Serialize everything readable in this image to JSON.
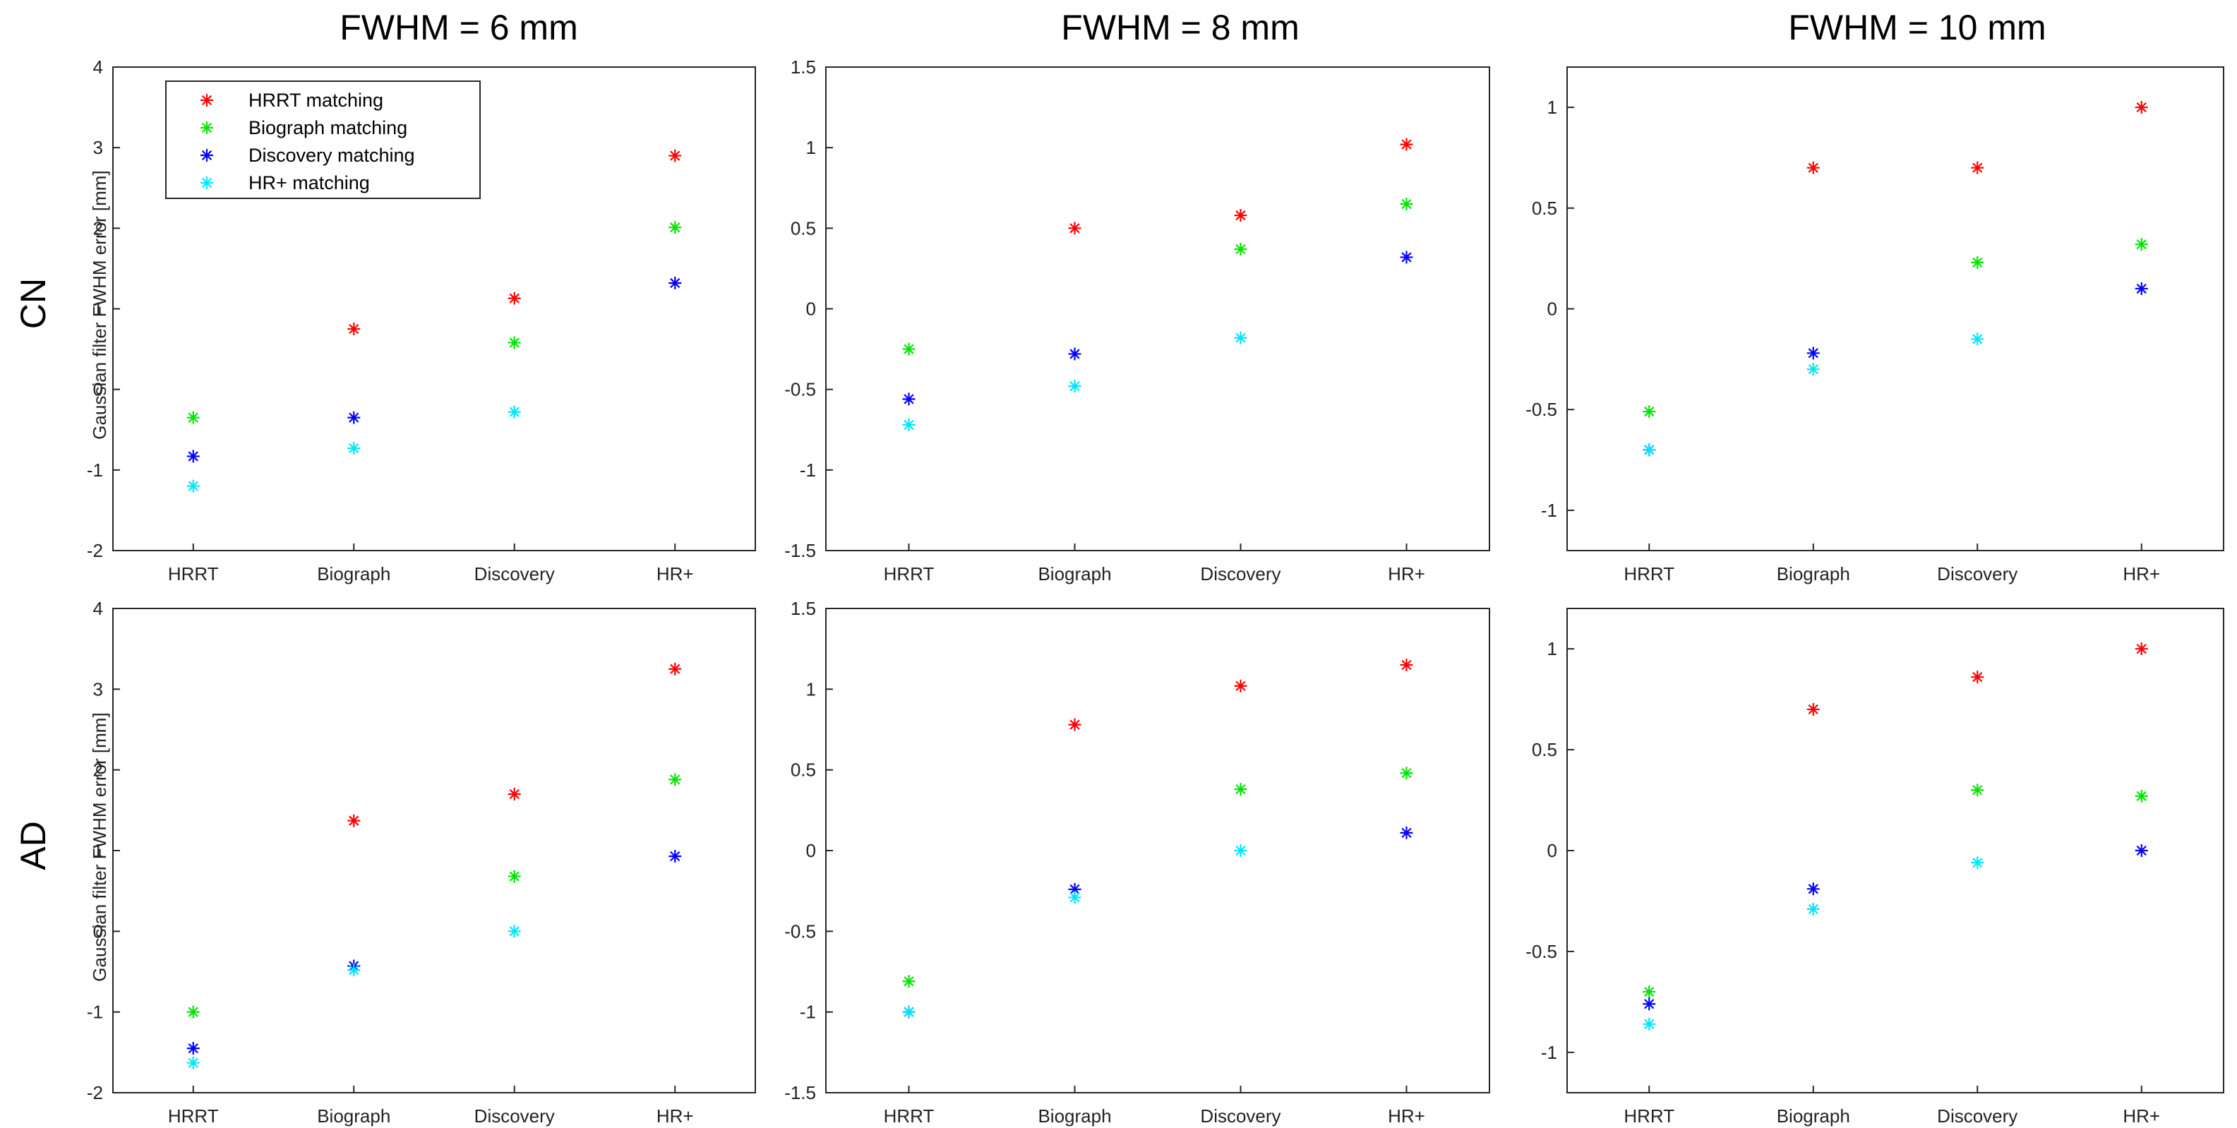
{
  "figure": {
    "column_titles": [
      "FWHM = 6 mm",
      "FWHM = 8 mm",
      "FWHM = 10 mm"
    ],
    "row_labels": [
      "CN",
      "AD"
    ],
    "ylabel": "Gaussian filter FWHM error [mm]"
  },
  "legend": {
    "placement": "top-left of first panel",
    "entries": [
      "HRRT matching",
      "Biograph matching",
      "Discovery matching",
      "HR+ matching"
    ]
  },
  "series_colors": {
    "HRRT matching": "#ff0000",
    "Biograph matching": "#00e600",
    "Discovery matching": "#0000ff",
    "HR+ matching": "#00e6ff"
  },
  "marker": "asterisk",
  "chart_data": [
    {
      "type": "scatter",
      "row": "CN",
      "column_title": "FWHM = 6 mm",
      "categories": [
        "HRRT",
        "Biograph",
        "Discovery",
        "HR+"
      ],
      "ylim": [
        -2,
        4
      ],
      "yticks": [
        -2,
        -1,
        0,
        1,
        2,
        3,
        4
      ],
      "ytick_labels": [
        "-2",
        "-1",
        "0",
        "1",
        "2",
        "3",
        "4"
      ],
      "ylabel": "Gaussian filter FWHM error [mm]",
      "grid": false,
      "series": [
        {
          "name": "HRRT matching",
          "values": [
            null,
            0.75,
            1.13,
            2.9
          ]
        },
        {
          "name": "Biograph matching",
          "values": [
            -0.35,
            null,
            0.58,
            2.01
          ]
        },
        {
          "name": "Discovery matching",
          "values": [
            -0.83,
            -0.35,
            null,
            1.32
          ]
        },
        {
          "name": "HR+ matching",
          "values": [
            -1.2,
            -0.73,
            -0.28,
            null
          ]
        }
      ]
    },
    {
      "type": "scatter",
      "row": "CN",
      "column_title": "FWHM = 8 mm",
      "categories": [
        "HRRT",
        "Biograph",
        "Discovery",
        "HR+"
      ],
      "ylim": [
        -1.5,
        1.5
      ],
      "yticks": [
        -1.5,
        -1,
        -0.5,
        0,
        0.5,
        1,
        1.5
      ],
      "ytick_labels": [
        "-1.5",
        "-1",
        "-0.5",
        "0",
        "0.5",
        "1",
        "1.5"
      ],
      "grid": false,
      "series": [
        {
          "name": "HRRT matching",
          "values": [
            null,
            0.5,
            0.58,
            1.02
          ]
        },
        {
          "name": "Biograph matching",
          "values": [
            -0.25,
            null,
            0.37,
            0.65
          ]
        },
        {
          "name": "Discovery matching",
          "values": [
            -0.56,
            -0.28,
            null,
            0.32
          ]
        },
        {
          "name": "HR+ matching",
          "values": [
            -0.72,
            -0.48,
            -0.18,
            null
          ]
        }
      ]
    },
    {
      "type": "scatter",
      "row": "CN",
      "column_title": "FWHM = 10 mm",
      "categories": [
        "HRRT",
        "Biograph",
        "Discovery",
        "HR+"
      ],
      "ylim": [
        -1.2,
        1.2
      ],
      "yticks": [
        -1,
        -0.5,
        0,
        0.5,
        1
      ],
      "ytick_labels": [
        "-1",
        "-0.5",
        "0",
        "0.5",
        "1"
      ],
      "grid": false,
      "series": [
        {
          "name": "HRRT matching",
          "values": [
            null,
            0.7,
            0.7,
            1.0
          ]
        },
        {
          "name": "Biograph matching",
          "values": [
            -0.51,
            null,
            0.23,
            0.32
          ]
        },
        {
          "name": "Discovery matching",
          "values": [
            -0.7,
            -0.22,
            null,
            0.1
          ]
        },
        {
          "name": "HR+ matching",
          "values": [
            -0.7,
            -0.3,
            -0.15,
            null
          ]
        }
      ]
    },
    {
      "type": "scatter",
      "row": "AD",
      "column_title": "FWHM = 6 mm",
      "categories": [
        "HRRT",
        "Biograph",
        "Discovery",
        "HR+"
      ],
      "ylim": [
        -2,
        4
      ],
      "yticks": [
        -2,
        -1,
        0,
        1,
        2,
        3,
        4
      ],
      "ytick_labels": [
        "-2",
        "-1",
        "0",
        "1",
        "2",
        "3",
        "4"
      ],
      "ylabel": "Gaussian filter FWHM error [mm]",
      "grid": false,
      "series": [
        {
          "name": "HRRT matching",
          "values": [
            null,
            1.37,
            1.7,
            3.25
          ]
        },
        {
          "name": "Biograph matching",
          "values": [
            -1.0,
            null,
            0.68,
            1.88
          ]
        },
        {
          "name": "Discovery matching",
          "values": [
            -1.45,
            -0.43,
            null,
            0.93
          ]
        },
        {
          "name": "HR+ matching",
          "values": [
            -1.63,
            -0.48,
            0.0,
            null
          ]
        }
      ]
    },
    {
      "type": "scatter",
      "row": "AD",
      "column_title": "FWHM = 8 mm",
      "categories": [
        "HRRT",
        "Biograph",
        "Discovery",
        "HR+"
      ],
      "ylim": [
        -1.5,
        1.5
      ],
      "yticks": [
        -1.5,
        -1,
        -0.5,
        0,
        0.5,
        1,
        1.5
      ],
      "ytick_labels": [
        "-1.5",
        "-1",
        "-0.5",
        "0",
        "0.5",
        "1",
        "1.5"
      ],
      "grid": false,
      "series": [
        {
          "name": "HRRT matching",
          "values": [
            null,
            0.78,
            1.02,
            1.15
          ]
        },
        {
          "name": "Biograph matching",
          "values": [
            -0.81,
            null,
            0.38,
            0.48
          ]
        },
        {
          "name": "Discovery matching",
          "values": [
            -1.0,
            -0.24,
            null,
            0.11
          ]
        },
        {
          "name": "HR+ matching",
          "values": [
            -1.0,
            -0.29,
            0.0,
            null
          ]
        }
      ]
    },
    {
      "type": "scatter",
      "row": "AD",
      "column_title": "FWHM = 10 mm",
      "categories": [
        "HRRT",
        "Biograph",
        "Discovery",
        "HR+"
      ],
      "ylim": [
        -1.2,
        1.2
      ],
      "yticks": [
        -1,
        -0.5,
        0,
        0.5,
        1
      ],
      "ytick_labels": [
        "-1",
        "-0.5",
        "0",
        "0.5",
        "1"
      ],
      "grid": false,
      "series": [
        {
          "name": "HRRT matching",
          "values": [
            null,
            0.7,
            0.86,
            1.0
          ]
        },
        {
          "name": "Biograph matching",
          "values": [
            -0.7,
            null,
            0.3,
            0.27
          ]
        },
        {
          "name": "Discovery matching",
          "values": [
            -0.76,
            -0.19,
            null,
            0.0
          ]
        },
        {
          "name": "HR+ matching",
          "values": [
            -0.86,
            -0.29,
            -0.06,
            null
          ]
        }
      ]
    }
  ]
}
